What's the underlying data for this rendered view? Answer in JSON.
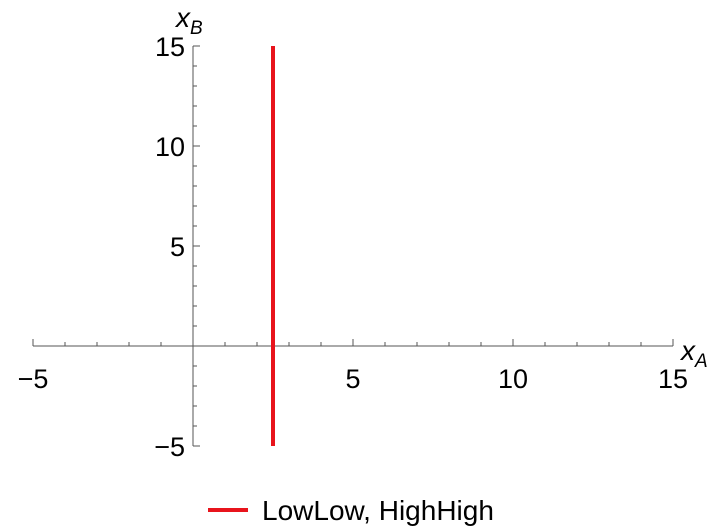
{
  "chart_data": {
    "type": "line",
    "xlabel": {
      "main": "x",
      "sub": "A"
    },
    "ylabel": {
      "main": "x",
      "sub": "B"
    },
    "xlim": [
      -5,
      15
    ],
    "ylim": [
      -5,
      15
    ],
    "x_ticks": [
      {
        "value": -5,
        "label": "−5"
      },
      {
        "value": 5,
        "label": "5"
      },
      {
        "value": 10,
        "label": "10"
      },
      {
        "value": 15,
        "label": "15"
      }
    ],
    "y_ticks": [
      {
        "value": -5,
        "label": "−5"
      },
      {
        "value": 5,
        "label": "5"
      },
      {
        "value": 10,
        "label": "10"
      },
      {
        "value": 15,
        "label": "15"
      }
    ],
    "minor_tick_step": 1,
    "grid": false,
    "legend_position": "bottom",
    "series": [
      {
        "name": "LowLow, HighHigh",
        "color": "#e8141c",
        "x": [
          2.5,
          2.5
        ],
        "y": [
          -5,
          15
        ]
      }
    ]
  }
}
